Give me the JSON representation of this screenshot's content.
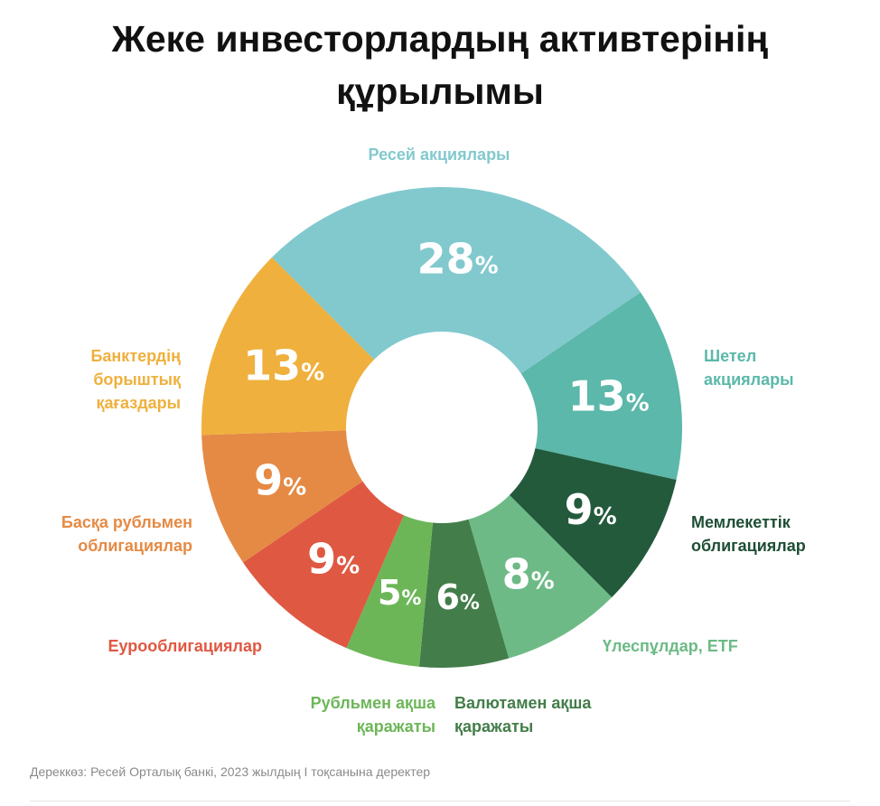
{
  "title": {
    "line1": "Жеке инвесторлардың активтерінің",
    "line2": "құрылымы"
  },
  "chart_data": {
    "type": "pie",
    "variant": "donut",
    "unit": "%",
    "categories": [
      [
        "Ресей акциялары"
      ],
      [
        "Шетел",
        "акциялары"
      ],
      [
        "Мемлекеттік",
        "облигациялар"
      ],
      [
        "Үлеспұлдар, ETF"
      ],
      [
        "Валютамен ақша",
        "қаражаты"
      ],
      [
        "Рубльмен ақша",
        "қаражаты"
      ],
      [
        "Еурооблигациялар"
      ],
      [
        "Басқа рубльмен",
        "облигациялар"
      ],
      [
        "Банктердің",
        "борыштық",
        "қағаздары"
      ]
    ],
    "values": [
      28,
      13,
      9,
      8,
      6,
      5,
      9,
      9,
      13
    ],
    "colors": [
      "#82C9CE",
      "#5BB8AA",
      "#235A3C",
      "#6DBA86",
      "#437D4A",
      "#6CB658",
      "#DF5842",
      "#E58A44",
      "#EFB03D"
    ],
    "label_colors": [
      "#82C9CE",
      "#5BB8AA",
      "#1E4F35",
      "#6DBA86",
      "#437D4A",
      "#6CB658",
      "#DF5842",
      "#E58A44",
      "#EFB03D"
    ],
    "start_angle_deg": -45,
    "direction": "clockwise"
  },
  "source": "Дереккөз: Ресей Орталық банкі, 2023 жылдың I тоқсанына деректер"
}
